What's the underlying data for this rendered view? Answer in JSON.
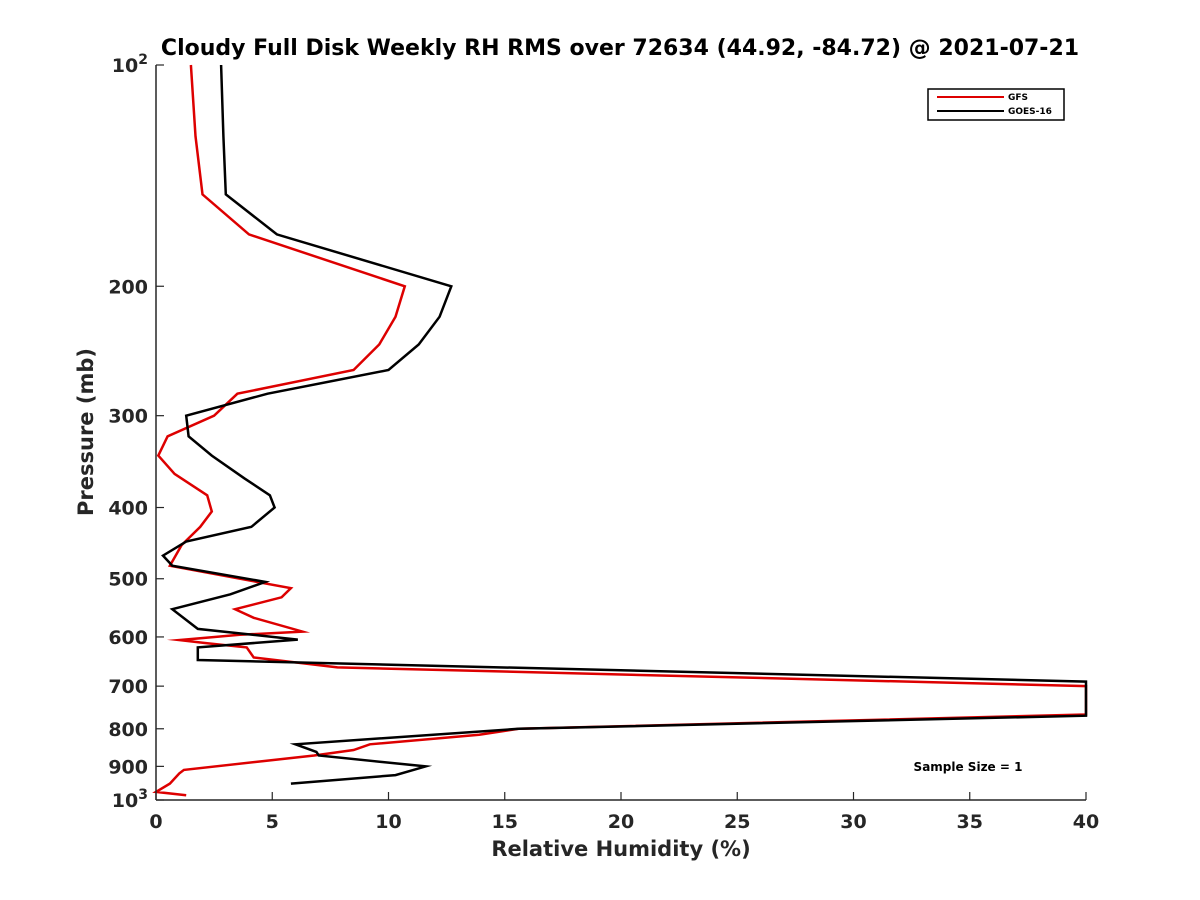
{
  "chart_data": {
    "type": "line",
    "title": "Cloudy Full Disk Weekly RH RMS over 72634 (44.92, -84.72) @ 2021-07-21",
    "xlabel": "Relative Humidity (%)",
    "ylabel": "Pressure (mb)",
    "xlim": [
      0,
      40
    ],
    "ylim": [
      100,
      1000
    ],
    "yscale": "log",
    "y_reversed": true,
    "x_ticks": [
      "0",
      "5",
      "10",
      "15",
      "20",
      "25",
      "30",
      "35",
      "40"
    ],
    "y_ticks": [
      {
        "value": 100,
        "label": "10",
        "sup": "2"
      },
      {
        "value": 200,
        "label": "200",
        "sup": ""
      },
      {
        "value": 300,
        "label": "300",
        "sup": ""
      },
      {
        "value": 400,
        "label": "400",
        "sup": ""
      },
      {
        "value": 500,
        "label": "500",
        "sup": ""
      },
      {
        "value": 600,
        "label": "600",
        "sup": ""
      },
      {
        "value": 700,
        "label": "700",
        "sup": ""
      },
      {
        "value": 800,
        "label": "800",
        "sup": ""
      },
      {
        "value": 900,
        "label": "900",
        "sup": ""
      },
      {
        "value": 1000,
        "label": "10",
        "sup": "3"
      }
    ],
    "grid": false,
    "legend_position": "top-right",
    "annotation": "Sample Size = 1",
    "series": [
      {
        "name": "GFS",
        "color": "#dd0000",
        "points": [
          [
            1.5,
            100
          ],
          [
            1.7,
            125
          ],
          [
            2.0,
            150
          ],
          [
            4.0,
            170
          ],
          [
            10.7,
            200
          ],
          [
            10.3,
            220
          ],
          [
            9.6,
            240
          ],
          [
            8.5,
            260
          ],
          [
            3.5,
            280
          ],
          [
            2.5,
            300
          ],
          [
            0.5,
            320
          ],
          [
            0.1,
            340
          ],
          [
            0.8,
            360
          ],
          [
            2.2,
            385
          ],
          [
            2.4,
            405
          ],
          [
            1.9,
            425
          ],
          [
            1.1,
            450
          ],
          [
            0.6,
            480
          ],
          [
            5.8,
            515
          ],
          [
            5.4,
            530
          ],
          [
            3.4,
            550
          ],
          [
            4.2,
            565
          ],
          [
            6.3,
            590
          ],
          [
            3.6,
            596
          ],
          [
            1.0,
            606
          ],
          [
            2.2,
            612
          ],
          [
            3.9,
            620
          ],
          [
            4.2,
            640
          ],
          [
            7.8,
            660
          ],
          [
            40.0,
            700
          ],
          [
            40.0,
            765
          ],
          [
            15.6,
            800
          ],
          [
            13.9,
            815
          ],
          [
            9.2,
            840
          ],
          [
            8.5,
            855
          ],
          [
            6.8,
            870
          ],
          [
            1.2,
            910
          ],
          [
            1.0,
            920
          ],
          [
            0.6,
            950
          ],
          [
            0.0,
            975
          ],
          [
            1.3,
            985
          ]
        ]
      },
      {
        "name": "GOES-16",
        "color": "#000000",
        "points": [
          [
            2.8,
            100
          ],
          [
            2.9,
            125
          ],
          [
            3.0,
            150
          ],
          [
            5.2,
            170
          ],
          [
            12.7,
            200
          ],
          [
            12.2,
            220
          ],
          [
            11.3,
            240
          ],
          [
            10.0,
            260
          ],
          [
            4.8,
            280
          ],
          [
            1.3,
            300
          ],
          [
            1.4,
            320
          ],
          [
            2.4,
            340
          ],
          [
            3.8,
            365
          ],
          [
            4.9,
            385
          ],
          [
            5.1,
            400
          ],
          [
            4.1,
            425
          ],
          [
            1.3,
            445
          ],
          [
            0.3,
            465
          ],
          [
            0.7,
            480
          ],
          [
            4.7,
            505
          ],
          [
            3.2,
            525
          ],
          [
            0.7,
            550
          ],
          [
            1.8,
            585
          ],
          [
            6.1,
            605
          ],
          [
            1.8,
            620
          ],
          [
            1.8,
            645
          ],
          [
            40.0,
            690
          ],
          [
            40.0,
            768
          ],
          [
            15.6,
            800
          ],
          [
            6.0,
            840
          ],
          [
            6.9,
            860
          ],
          [
            7.0,
            870
          ],
          [
            11.6,
            900
          ],
          [
            10.3,
            925
          ],
          [
            5.8,
            950
          ]
        ]
      }
    ]
  }
}
